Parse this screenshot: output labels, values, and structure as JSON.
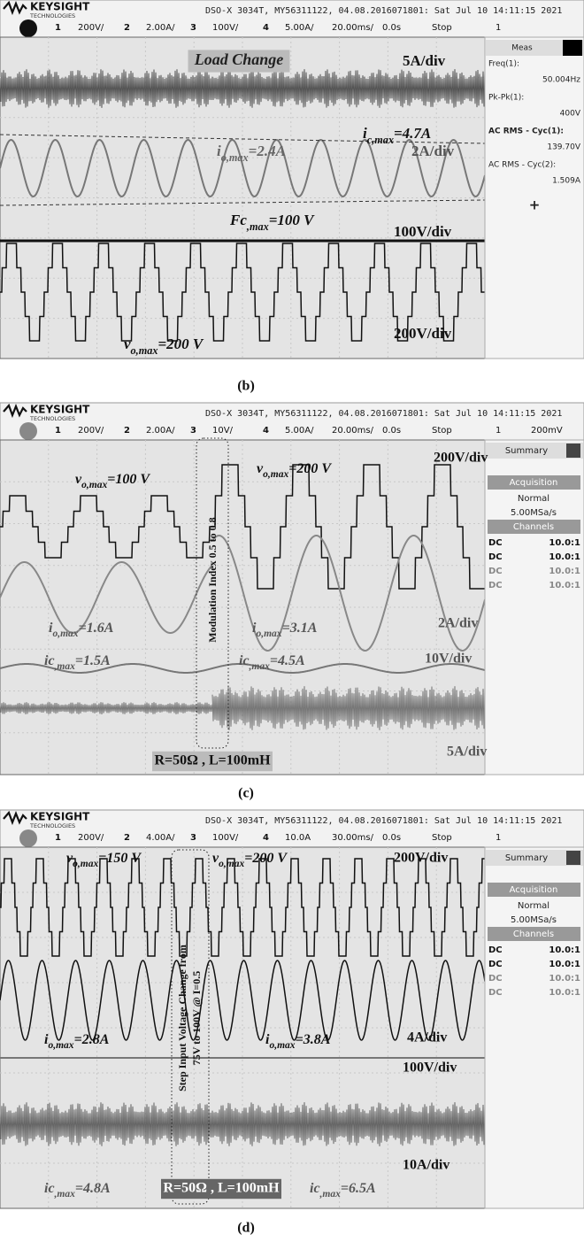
{
  "panels": [
    {
      "brand": "KEYSIGHT",
      "brand_sub": "TECHNOLOGIES",
      "info": "DSO-X 3034T, MY56311122, 04.08.2016071801: Sat Jul 10 14:11:15 2021",
      "channel_bar": [
        "1",
        "200V/",
        "2",
        "2.00A/",
        "3",
        "100V/",
        "4",
        "5.00A/",
        "20.00ms/",
        "0.0s",
        "Stop",
        "1"
      ],
      "side": [
        "Meas",
        "Freq(1):",
        "50.004Hz",
        "Pk-Pk(1):",
        "400V",
        "AC RMS - Cyc(1):",
        "139.70V",
        "AC RMS - Cyc(2):",
        "1.509A",
        "+"
      ],
      "annotations": [
        {
          "text": "Load Change"
        },
        {
          "text": "5A/div"
        },
        {
          "main": "i",
          "sub": "c,max",
          "rest": "=4.7A"
        },
        {
          "main": "i",
          "sub": "o,max",
          "rest": "=2.4A"
        },
        {
          "text": "2A/div"
        },
        {
          "main": "Fc",
          "sub": ",max",
          "rest": "=100 V"
        },
        {
          "text": "100V/div"
        },
        {
          "main": "v",
          "sub": "o,max",
          "rest": "=200 V"
        },
        {
          "text": "200V/div"
        }
      ],
      "caption": "(b)"
    },
    {
      "brand": "KEYSIGHT",
      "brand_sub": "TECHNOLOGIES",
      "info": "DSO-X 3034T, MY56311122, 04.08.2016071801: Sat Jul 10 14:11:15 2021",
      "channel_bar": [
        "1",
        "200V/",
        "2",
        "2.00A/",
        "3",
        "10V/",
        "4",
        "5.00A/",
        "20.00ms/",
        "0.0s",
        "Stop",
        "1",
        "200mV"
      ],
      "side": [
        "Summary",
        "Acquisition",
        "Normal",
        "5.00MSa/s",
        "Channels",
        "DC",
        "10.0:1",
        "DC",
        "10.0:1",
        "DC",
        "10.0:1",
        "DC",
        "10.0:1"
      ],
      "annotations": [
        {
          "text": "200V/div"
        },
        {
          "main": "v",
          "sub": "o,max",
          "rest": "=100 V"
        },
        {
          "main": "v",
          "sub": "o,max",
          "rest": "=200 V"
        },
        {
          "text": "Modulation Index 0.5 to 0.8"
        },
        {
          "main": "i",
          "sub": "o,max",
          "rest": "=1.6A"
        },
        {
          "main": "i",
          "sub": "o,max",
          "rest": "=3.1A"
        },
        {
          "text": "2A/div"
        },
        {
          "text": "10V/div"
        },
        {
          "main": "ic",
          "sub": ",max",
          "rest": "=1.5A"
        },
        {
          "main": "ic",
          "sub": ",max",
          "rest": "=4.5A"
        },
        {
          "text": "R=50Ω , L=100mH"
        },
        {
          "text": "5A/div"
        }
      ],
      "caption": "(c)"
    },
    {
      "brand": "KEYSIGHT",
      "brand_sub": "TECHNOLOGIES",
      "info": "DSO-X 3034T, MY56311122, 04.08.2016071801: Sat Jul 10 14:11:15 2021",
      "channel_bar": [
        "1",
        "200V/",
        "2",
        "4.00A/",
        "3",
        "100V/",
        "4",
        "10.0A",
        "30.00ms/",
        "0.0s",
        "Stop",
        "1"
      ],
      "side": [
        "Summary",
        "Acquisition",
        "Normal",
        "5.00MSa/s",
        "Channels",
        "DC",
        "10.0:1",
        "DC",
        "10.0:1",
        "DC",
        "10.0:1",
        "DC",
        "10.0:1"
      ],
      "annotations": [
        {
          "main": "v",
          "sub": "o,max",
          "rest": "=150 V"
        },
        {
          "main": "v",
          "sub": "o,max",
          "rest": "=200 V"
        },
        {
          "text": "200V/div"
        },
        {
          "text": "Step Input Voltage Change from"
        },
        {
          "text": "75V to 100V @ I=0.5"
        },
        {
          "main": "i",
          "sub": "o,max",
          "rest": "=2.8A"
        },
        {
          "main": "i",
          "sub": "o,max",
          "rest": "=3.8A"
        },
        {
          "text": "4A/div"
        },
        {
          "text": "100V/div"
        },
        {
          "text": "10A/div"
        },
        {
          "main": "ic",
          "sub": ",max",
          "rest": "=4.8A"
        },
        {
          "main": "ic",
          "sub": ",max",
          "rest": "=6.5A"
        },
        {
          "text": "R=50Ω , L=100mH"
        }
      ],
      "caption": "(d)"
    }
  ]
}
